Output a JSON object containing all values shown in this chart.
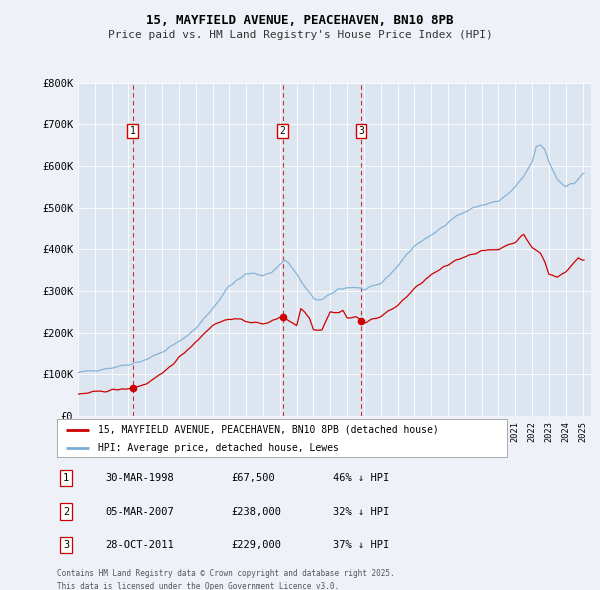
{
  "title": "15, MAYFIELD AVENUE, PEACEHAVEN, BN10 8PB",
  "subtitle": "Price paid vs. HM Land Registry's House Price Index (HPI)",
  "bg_color": "#eef2f8",
  "plot_bg_color": "#dde6f0",
  "grid_color": "#ffffff",
  "sale_color": "#cc0000",
  "hpi_color": "#7aaed6",
  "ylim": [
    0,
    800000
  ],
  "yticks": [
    0,
    100000,
    200000,
    300000,
    400000,
    500000,
    600000,
    700000,
    800000
  ],
  "ytick_labels": [
    "£0",
    "£100K",
    "£200K",
    "£300K",
    "£400K",
    "£500K",
    "£600K",
    "£700K",
    "£800K"
  ],
  "sale_dates": [
    1998.25,
    2007.17,
    2011.83
  ],
  "sale_prices": [
    67500,
    238000,
    229000
  ],
  "sale_labels": [
    "1",
    "2",
    "3"
  ],
  "legend_sale": "15, MAYFIELD AVENUE, PEACEHAVEN, BN10 8PB (detached house)",
  "legend_hpi": "HPI: Average price, detached house, Lewes",
  "table_data": [
    [
      "1",
      "30-MAR-1998",
      "£67,500",
      "46% ↓ HPI"
    ],
    [
      "2",
      "05-MAR-2007",
      "£238,000",
      "32% ↓ HPI"
    ],
    [
      "3",
      "28-OCT-2011",
      "£229,000",
      "37% ↓ HPI"
    ]
  ],
  "footer": "Contains HM Land Registry data © Crown copyright and database right 2025.\nThis data is licensed under the Open Government Licence v3.0."
}
